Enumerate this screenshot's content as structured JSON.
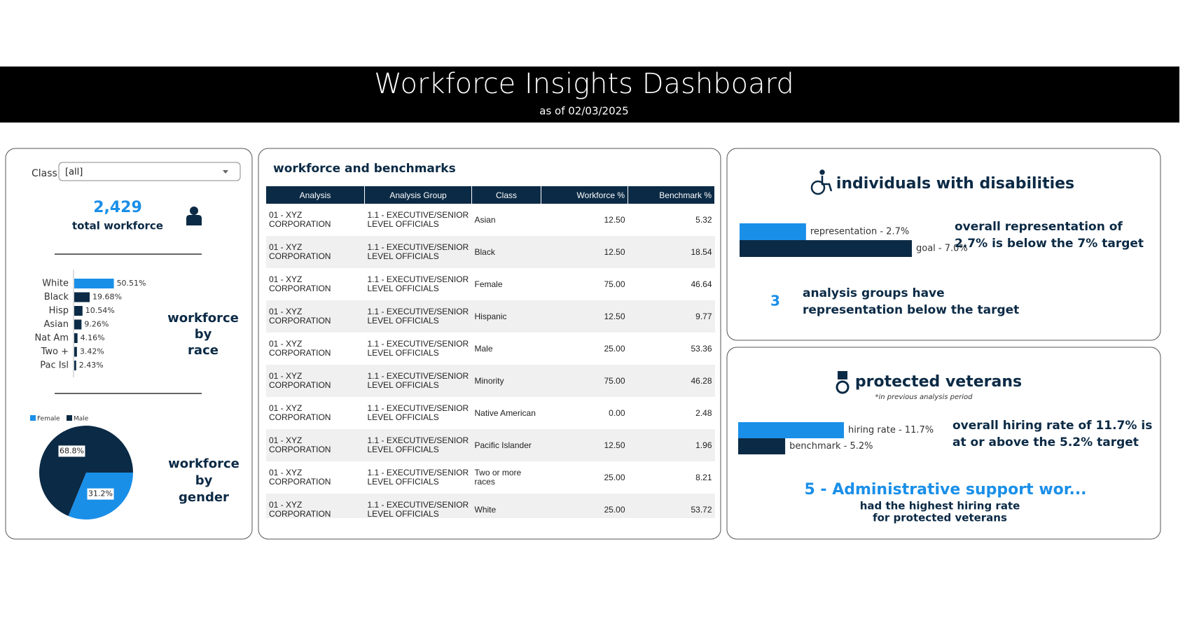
{
  "header": {
    "title": "Workforce Insights Dashboard",
    "subtitle": "as of 02/03/2025"
  },
  "filter": {
    "label": "Class",
    "value": "[all]"
  },
  "total": {
    "value": "2,429",
    "label": "total workforce"
  },
  "table": {
    "title": "workforce and benchmarks",
    "columns": [
      "Analysis",
      "Analysis Group",
      "Class",
      "Workforce %",
      "Benchmark %"
    ],
    "rows": [
      [
        "01 - XYZ CORPORATION",
        "1.1 - EXECUTIVE/SENIOR LEVEL OFFICIALS",
        "Asian",
        "12.50",
        "5.32"
      ],
      [
        "01 - XYZ CORPORATION",
        "1.1 - EXECUTIVE/SENIOR LEVEL OFFICIALS",
        "Black",
        "12.50",
        "18.54"
      ],
      [
        "01 - XYZ CORPORATION",
        "1.1 - EXECUTIVE/SENIOR LEVEL OFFICIALS",
        "Female",
        "75.00",
        "46.64"
      ],
      [
        "01 - XYZ CORPORATION",
        "1.1 - EXECUTIVE/SENIOR LEVEL OFFICIALS",
        "Hispanic",
        "12.50",
        "9.77"
      ],
      [
        "01 - XYZ CORPORATION",
        "1.1 - EXECUTIVE/SENIOR LEVEL OFFICIALS",
        "Male",
        "25.00",
        "53.36"
      ],
      [
        "01 - XYZ CORPORATION",
        "1.1 - EXECUTIVE/SENIOR LEVEL OFFICIALS",
        "Minority",
        "75.00",
        "46.28"
      ],
      [
        "01 - XYZ CORPORATION",
        "1.1 - EXECUTIVE/SENIOR LEVEL OFFICIALS",
        "Native American",
        "0.00",
        "2.48"
      ],
      [
        "01 - XYZ CORPORATION",
        "1.1 - EXECUTIVE/SENIOR LEVEL OFFICIALS",
        "Pacific Islander",
        "12.50",
        "1.96"
      ],
      [
        "01 - XYZ CORPORATION",
        "1.1 - EXECUTIVE/SENIOR LEVEL OFFICIALS",
        "Two or more races",
        "25.00",
        "8.21"
      ],
      [
        "01 - XYZ CORPORATION",
        "1.1 - EXECUTIVE/SENIOR LEVEL OFFICIALS",
        "White",
        "25.00",
        "53.72"
      ]
    ]
  },
  "chart_data": [
    {
      "type": "hbar",
      "title": [
        "workforce",
        "by",
        "race"
      ],
      "categories": [
        "White",
        "Black",
        "Hisp",
        "Asian",
        "Nat Am",
        "Two +",
        "Pac Isl"
      ],
      "values": [
        50.51,
        19.68,
        10.54,
        9.26,
        4.16,
        3.42,
        2.43
      ],
      "value_labels": [
        "50.51%",
        "19.68%",
        "10.54%",
        "9.26%",
        "4.16%",
        "3.42%",
        "2.43%"
      ],
      "colors": [
        "#1a8fe8",
        "#0b2a45",
        "#0b2a45",
        "#0b2a45",
        "#0b2a45",
        "#0b2a45",
        "#0b2a45"
      ]
    },
    {
      "type": "pie",
      "title": [
        "workforce",
        "by",
        "gender"
      ],
      "categories": [
        "Female",
        "Male"
      ],
      "values": [
        31.2,
        68.8
      ],
      "value_labels": [
        "31.2%",
        "68.8%"
      ],
      "colors": [
        "#1a8fe8",
        "#0b2a45"
      ]
    },
    {
      "type": "kpibar",
      "title": "individuals with disabilities",
      "categories": [
        "representation",
        "goal"
      ],
      "values": [
        2.7,
        7.0
      ],
      "value_labels": [
        "representation - 2.7%",
        "goal - 7.0%"
      ],
      "colors": [
        "#1a8fe8",
        "#0b2a45"
      ],
      "statement": [
        "overall representation of",
        "2.7% is below the 7% target"
      ],
      "count": "3",
      "count_text": [
        "analysis groups have",
        "representation below the target"
      ]
    },
    {
      "type": "kpibar",
      "title": "protected veterans",
      "note": "*in previous analysis period",
      "categories": [
        "hiring rate",
        "benchmark"
      ],
      "values": [
        11.7,
        5.2
      ],
      "value_labels": [
        "hiring rate - 11.7%",
        "benchmark - 5.2%"
      ],
      "colors": [
        "#1a8fe8",
        "#0b2a45"
      ],
      "statement": [
        "overall hiring rate of 11.7% is",
        "at or above the 5.2% target"
      ],
      "top_group": "5 - Administrative support wor...",
      "top_text": [
        "had the highest hiring rate",
        "for protected veterans"
      ]
    }
  ]
}
